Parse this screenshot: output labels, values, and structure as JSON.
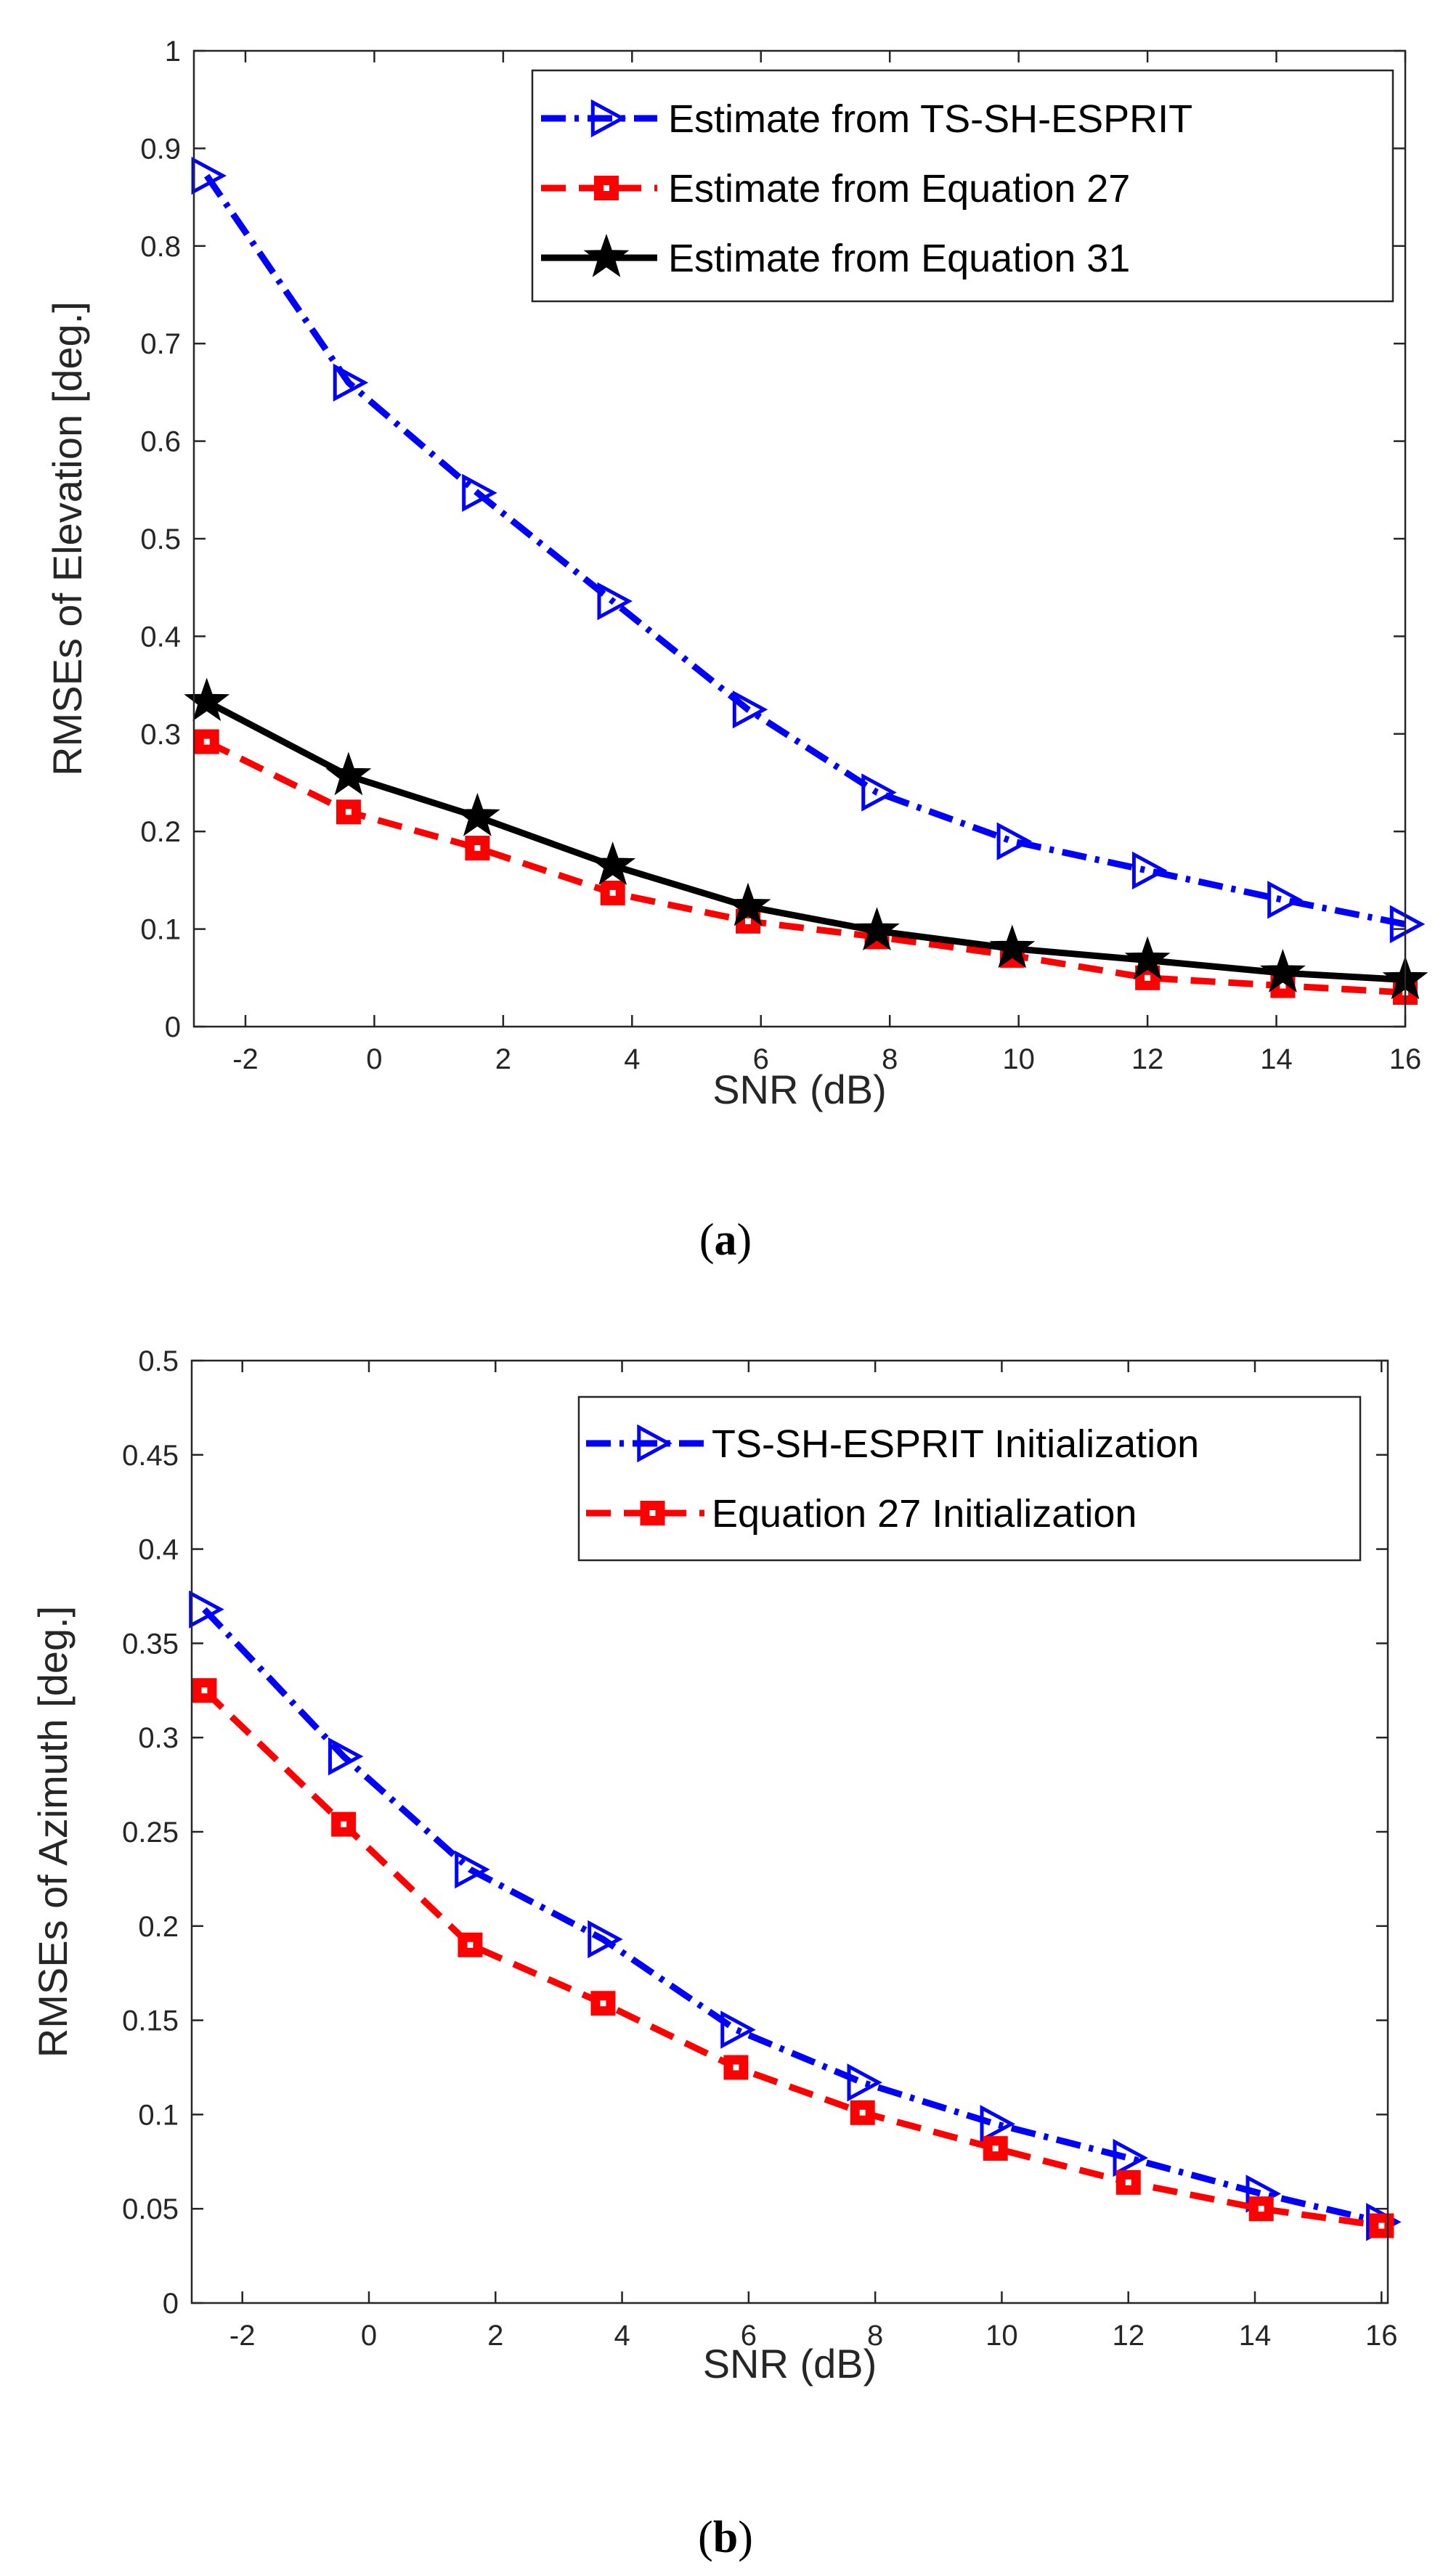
{
  "chart_data": [
    {
      "type": "line",
      "panel_label": "a",
      "xlabel": "SNR (dB)",
      "ylabel": "RMSEs of Elevation [deg.]",
      "xlim": [
        -2.8,
        16
      ],
      "ylim": [
        0,
        1
      ],
      "xticks": [
        -2,
        0,
        2,
        4,
        6,
        8,
        10,
        12,
        14,
        16
      ],
      "xtick_labels": [
        "-2",
        "0",
        "2",
        "4",
        "6",
        "8",
        "10",
        "12",
        "14",
        "16"
      ],
      "yticks": [
        0,
        0.1,
        0.2,
        0.3,
        0.4,
        0.5,
        0.6,
        0.7,
        0.8,
        0.9,
        1
      ],
      "ytick_labels": [
        "0",
        "0.1",
        "0.2",
        "0.3",
        "0.4",
        "0.5",
        "0.6",
        "0.7",
        "0.8",
        "0.9",
        "1"
      ],
      "grid": false,
      "legend_position": "top-right",
      "series": [
        {
          "name": "Estimate from TS-SH-ESPRIT",
          "color": "#0000ff",
          "line_style": "dash-dot",
          "marker": "triangle-right",
          "x": [
            -2.6,
            -0.4,
            1.6,
            3.7,
            5.8,
            7.8,
            9.9,
            12.0,
            14.1,
            16.0
          ],
          "values": [
            0.872,
            0.66,
            0.547,
            0.436,
            0.325,
            0.24,
            0.19,
            0.16,
            0.13,
            0.105
          ]
        },
        {
          "name": "Estimate from Equation 27",
          "color": "#ff0000",
          "line_style": "dashed",
          "marker": "square",
          "x": [
            -2.6,
            -0.4,
            1.6,
            3.7,
            5.8,
            7.8,
            9.9,
            12.0,
            14.1,
            16.0
          ],
          "values": [
            0.292,
            0.22,
            0.183,
            0.137,
            0.108,
            0.092,
            0.073,
            0.05,
            0.042,
            0.035
          ]
        },
        {
          "name": "Estimate from Equation 31",
          "color": "#000000",
          "line_style": "solid",
          "marker": "star",
          "x": [
            -2.6,
            -0.4,
            1.6,
            3.7,
            5.8,
            7.8,
            9.9,
            12.0,
            14.1,
            16.0
          ],
          "values": [
            0.333,
            0.257,
            0.215,
            0.165,
            0.123,
            0.098,
            0.08,
            0.068,
            0.055,
            0.048
          ]
        }
      ]
    },
    {
      "type": "line",
      "panel_label": "b",
      "xlabel": "SNR (dB)",
      "ylabel": "RMSEs of Azimuth [deg.]",
      "xlim": [
        -2.8,
        16.1
      ],
      "ylim": [
        0,
        0.5
      ],
      "xticks": [
        -2,
        0,
        2,
        4,
        6,
        8,
        10,
        12,
        14,
        16
      ],
      "xtick_labels": [
        "-2",
        "0",
        "2",
        "4",
        "6",
        "8",
        "10",
        "12",
        "14",
        "16"
      ],
      "yticks": [
        0,
        0.05,
        0.1,
        0.15,
        0.2,
        0.25,
        0.3,
        0.35,
        0.4,
        0.45,
        0.5
      ],
      "ytick_labels": [
        "0",
        "0.05",
        "0.1",
        "0.15",
        "0.2",
        "0.25",
        "0.3",
        "0.35",
        "0.4",
        "0.45",
        "0.5"
      ],
      "grid": false,
      "legend_position": "top-right",
      "series": [
        {
          "name": "TS-SH-ESPRIT Initialization",
          "color": "#0000ff",
          "line_style": "dash-dot",
          "marker": "triangle-right",
          "x": [
            -2.6,
            -0.4,
            1.6,
            3.7,
            5.8,
            7.8,
            9.9,
            12.0,
            14.1,
            16.0
          ],
          "values": [
            0.368,
            0.29,
            0.23,
            0.193,
            0.145,
            0.117,
            0.095,
            0.077,
            0.058,
            0.043
          ]
        },
        {
          "name": "Equation 27 Initialization",
          "color": "#ff0000",
          "line_style": "dashed",
          "marker": "square",
          "x": [
            -2.6,
            -0.4,
            1.6,
            3.7,
            5.8,
            7.8,
            9.9,
            12.0,
            14.1,
            16.0
          ],
          "values": [
            0.325,
            0.254,
            0.19,
            0.159,
            0.125,
            0.101,
            0.082,
            0.064,
            0.05,
            0.041
          ]
        }
      ]
    }
  ]
}
